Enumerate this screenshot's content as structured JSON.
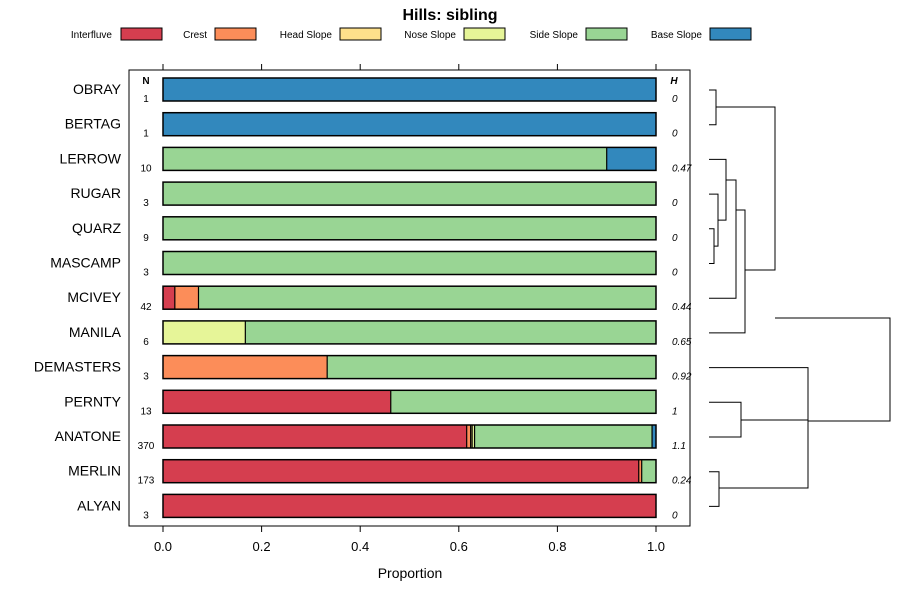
{
  "chart_data": {
    "type": "bar",
    "orientation": "horizontal",
    "stacked": true,
    "title": "Hills: sibling",
    "xlabel": "Proportion",
    "xlim": [
      0,
      1
    ],
    "xticks": [
      "0.0",
      "0.2",
      "0.4",
      "0.6",
      "0.8",
      "1.0"
    ],
    "n_header": "N",
    "h_header": "H",
    "legend": [
      {
        "name": "Interfluve",
        "color": "#D53E4F"
      },
      {
        "name": "Crest",
        "color": "#FC8D59"
      },
      {
        "name": "Head Slope",
        "color": "#FEE08B"
      },
      {
        "name": "Nose Slope",
        "color": "#E6F598"
      },
      {
        "name": "Side Slope",
        "color": "#99D594"
      },
      {
        "name": "Base Slope",
        "color": "#3288BD"
      }
    ],
    "categories": [
      "OBRAY",
      "BERTAG",
      "LERROW",
      "RUGAR",
      "QUARZ",
      "MASCAMP",
      "MCIVEY",
      "MANILA",
      "DEMASTERS",
      "PERNTY",
      "ANATONE",
      "MERLIN",
      "ALYAN"
    ],
    "n": [
      "1",
      "1",
      "10",
      "3",
      "9",
      "3",
      "42",
      "6",
      "3",
      "13",
      "370",
      "173",
      "3"
    ],
    "h": [
      "0",
      "0",
      "0.47",
      "0",
      "0",
      "0",
      "0.44",
      "0.65",
      "0.92",
      "1",
      "1.1",
      "0.24",
      "0"
    ],
    "series": [
      {
        "name": "Interfluve",
        "values": [
          0,
          0,
          0,
          0,
          0,
          0,
          0.024,
          0,
          0,
          0.462,
          0.616,
          0.965,
          1
        ]
      },
      {
        "name": "Crest",
        "values": [
          0,
          0,
          0,
          0,
          0,
          0,
          0.048,
          0,
          0.333,
          0,
          0.008,
          0.006,
          0
        ]
      },
      {
        "name": "Head Slope",
        "values": [
          0,
          0,
          0,
          0,
          0,
          0,
          0,
          0,
          0,
          0,
          0.003,
          0,
          0
        ]
      },
      {
        "name": "Nose Slope",
        "values": [
          0,
          0,
          0,
          0,
          0,
          0,
          0,
          0.167,
          0,
          0,
          0.005,
          0,
          0
        ]
      },
      {
        "name": "Side Slope",
        "values": [
          0,
          0,
          0.9,
          1,
          1,
          1,
          0.928,
          0.833,
          0.667,
          0.538,
          0.36,
          0.029,
          0
        ]
      },
      {
        "name": "Base Slope",
        "values": [
          1,
          1,
          0.1,
          0,
          0,
          0,
          0,
          0,
          0,
          0,
          0.008,
          0,
          0
        ]
      }
    ],
    "dendrogram": {
      "type": "hierarchical-clustering",
      "leaf_order": [
        "OBRAY",
        "BERTAG",
        "LERROW",
        "RUGAR",
        "QUARZ",
        "MASCAMP",
        "MCIVEY",
        "MANILA",
        "DEMASTERS",
        "PERNTY",
        "ANATONE",
        "MERLIN",
        "ALYAN"
      ]
    }
  }
}
